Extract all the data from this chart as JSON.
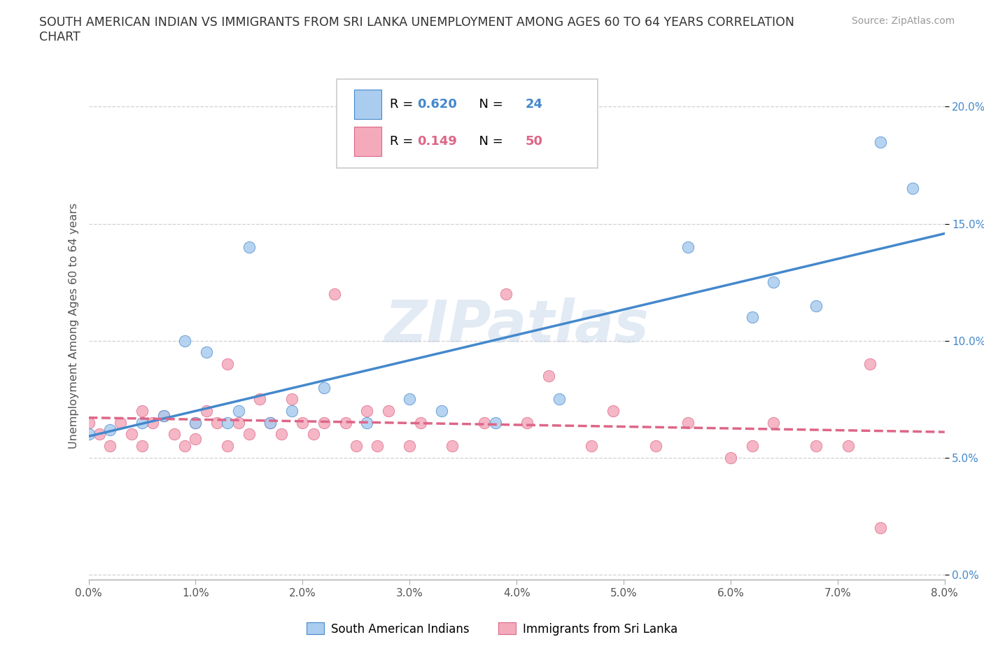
{
  "title_line1": "SOUTH AMERICAN INDIAN VS IMMIGRANTS FROM SRI LANKA UNEMPLOYMENT AMONG AGES 60 TO 64 YEARS CORRELATION",
  "title_line2": "CHART",
  "source": "Source: ZipAtlas.com",
  "ylabel": "Unemployment Among Ages 60 to 64 years",
  "blue_label": "South American Indians",
  "pink_label": "Immigrants from Sri Lanka",
  "blue_R": 0.62,
  "blue_N": 24,
  "pink_R": 0.149,
  "pink_N": 50,
  "blue_color": "#aaccee",
  "pink_color": "#f4aabb",
  "blue_line_color": "#4488cc",
  "pink_line_color": "#dd6688",
  "xlim": [
    0.0,
    0.08
  ],
  "ylim": [
    -0.002,
    0.215
  ],
  "xticks": [
    0.0,
    0.01,
    0.02,
    0.03,
    0.04,
    0.05,
    0.06,
    0.07,
    0.08
  ],
  "yticks": [
    0.0,
    0.05,
    0.1,
    0.15,
    0.2
  ],
  "blue_x": [
    0.0,
    0.002,
    0.005,
    0.007,
    0.009,
    0.01,
    0.011,
    0.013,
    0.014,
    0.015,
    0.017,
    0.019,
    0.022,
    0.026,
    0.03,
    0.033,
    0.038,
    0.044,
    0.056,
    0.062,
    0.064,
    0.068,
    0.074,
    0.077
  ],
  "blue_y": [
    0.06,
    0.062,
    0.065,
    0.068,
    0.1,
    0.065,
    0.095,
    0.065,
    0.07,
    0.14,
    0.065,
    0.07,
    0.08,
    0.065,
    0.075,
    0.07,
    0.065,
    0.075,
    0.14,
    0.11,
    0.125,
    0.115,
    0.185,
    0.165
  ],
  "pink_x": [
    0.0,
    0.001,
    0.002,
    0.003,
    0.004,
    0.005,
    0.005,
    0.006,
    0.007,
    0.008,
    0.009,
    0.01,
    0.01,
    0.011,
    0.012,
    0.013,
    0.013,
    0.014,
    0.015,
    0.016,
    0.017,
    0.018,
    0.019,
    0.02,
    0.021,
    0.022,
    0.023,
    0.024,
    0.025,
    0.026,
    0.027,
    0.028,
    0.03,
    0.031,
    0.034,
    0.037,
    0.039,
    0.041,
    0.043,
    0.047,
    0.049,
    0.053,
    0.056,
    0.06,
    0.062,
    0.064,
    0.068,
    0.071,
    0.073,
    0.074
  ],
  "pink_y": [
    0.065,
    0.06,
    0.055,
    0.065,
    0.06,
    0.055,
    0.07,
    0.065,
    0.068,
    0.06,
    0.055,
    0.058,
    0.065,
    0.07,
    0.065,
    0.09,
    0.055,
    0.065,
    0.06,
    0.075,
    0.065,
    0.06,
    0.075,
    0.065,
    0.06,
    0.065,
    0.12,
    0.065,
    0.055,
    0.07,
    0.055,
    0.07,
    0.055,
    0.065,
    0.055,
    0.065,
    0.12,
    0.065,
    0.085,
    0.055,
    0.07,
    0.055,
    0.065,
    0.05,
    0.055,
    0.065,
    0.055,
    0.055,
    0.09,
    0.02
  ],
  "watermark_text": "ZIPatlas",
  "background_color": "#ffffff",
  "grid_color": "#cccccc",
  "title_color": "#333333",
  "source_color": "#999999",
  "axis_label_color": "#555555",
  "ytick_color": "#4488cc",
  "xtick_color": "#555555"
}
